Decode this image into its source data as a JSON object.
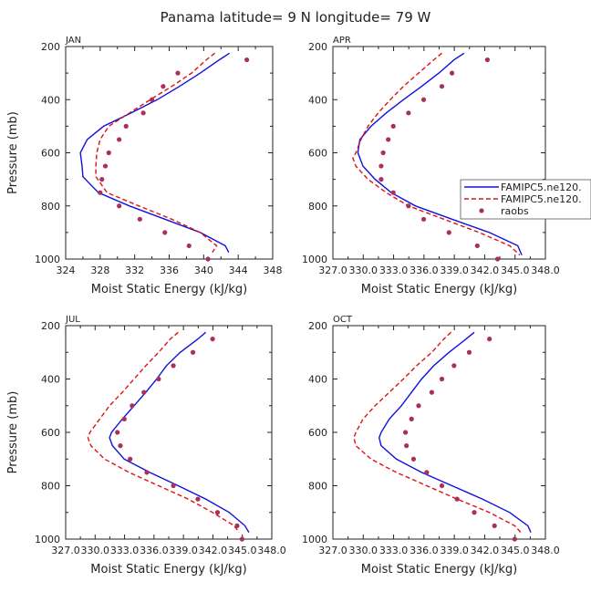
{
  "figure_title": "Panama   latitude= 9 N longitude= 79 W",
  "colors": {
    "model_a": "#1010e0",
    "model_b": "#e01010",
    "obs": "#a8305a",
    "axis": "#222222"
  },
  "legend": {
    "entries": [
      {
        "label": "FAMIPC5.ne120.",
        "style": "solid"
      },
      {
        "label": "FAMIPC5.ne120.",
        "style": "dashed"
      },
      {
        "label": "raobs",
        "style": "marker"
      }
    ]
  },
  "chart_data": [
    {
      "type": "line",
      "panel": "JAN",
      "xlabel": "Moist Static Energy (kJ/kg)",
      "ylabel": "Pressure (mb)",
      "xlim": [
        324,
        348
      ],
      "ylim": [
        1000,
        200
      ],
      "xticks": [
        324,
        328,
        332,
        336,
        340,
        344,
        348
      ],
      "xtick_labels": [
        "324",
        "328",
        "332",
        "336",
        "340",
        "344",
        "348"
      ],
      "yticks": [
        200,
        400,
        600,
        800,
        1000
      ],
      "ytick_labels": [
        "200",
        "400",
        "600",
        "800",
        "1000"
      ],
      "series": [
        {
          "name": "FAMIPC5.ne120.",
          "style": "solid",
          "pressure": [
            225,
            250,
            300,
            350,
            400,
            450,
            500,
            550,
            600,
            650,
            690,
            750,
            800,
            850,
            900,
            950,
            975
          ],
          "values": [
            343.0,
            341.8,
            339.6,
            337.2,
            334.6,
            331.6,
            328.4,
            326.5,
            325.7,
            325.9,
            326.0,
            327.8,
            331.4,
            335.5,
            339.6,
            342.5,
            342.9
          ]
        },
        {
          "name": "FAMIPC5.ne120.",
          "style": "dashed",
          "pressure": [
            225,
            250,
            300,
            350,
            400,
            450,
            500,
            550,
            600,
            650,
            690,
            750,
            800,
            850,
            900,
            950,
            975
          ],
          "values": [
            341.3,
            340.3,
            338.6,
            336.3,
            333.8,
            331.4,
            329.0,
            328.0,
            327.6,
            327.5,
            327.5,
            328.8,
            332.5,
            336.3,
            339.6,
            341.5,
            341.0
          ]
        },
        {
          "name": "raobs",
          "style": "marker",
          "pressure": [
            250,
            300,
            350,
            400,
            450,
            500,
            550,
            600,
            650,
            700,
            750,
            800,
            850,
            900,
            950,
            1000
          ],
          "values": [
            345.0,
            337.0,
            335.3,
            334.0,
            333.0,
            331.0,
            330.2,
            329.0,
            328.6,
            328.2,
            328.0,
            330.2,
            332.6,
            335.5,
            338.3,
            340.5
          ]
        }
      ]
    },
    {
      "type": "line",
      "panel": "APR",
      "xlabel": "Moist Static Energy (kJ/kg)",
      "ylabel": "Pressure (mb)",
      "xlim": [
        327.03,
        348.03
      ],
      "ylim": [
        1000,
        200
      ],
      "xticks": [
        327.03,
        330.03,
        333.03,
        336.03,
        339.03,
        342.03,
        345.03,
        348.03
      ],
      "xtick_labels": [
        "327.0",
        "330.0",
        "333.0",
        "336.0",
        "339.0",
        "342.0",
        "345.0",
        "348.0"
      ],
      "yticks": [
        200,
        400,
        600,
        800,
        1000
      ],
      "ytick_labels": [
        "200",
        "400",
        "600",
        "800",
        "1000"
      ],
      "series": [
        {
          "name": "FAMIPC5.ne120.",
          "style": "solid",
          "pressure": [
            225,
            250,
            300,
            350,
            400,
            450,
            500,
            550,
            600,
            650,
            700,
            750,
            800,
            850,
            900,
            950,
            985
          ],
          "values": [
            340.0,
            339.0,
            337.5,
            335.8,
            334.0,
            332.3,
            330.8,
            329.7,
            329.5,
            330.0,
            331.2,
            332.8,
            335.2,
            338.8,
            342.5,
            345.3,
            345.7
          ]
        },
        {
          "name": "FAMIPC5.ne120.",
          "style": "dashed",
          "pressure": [
            225,
            250,
            300,
            350,
            400,
            450,
            500,
            550,
            600,
            620,
            650,
            700,
            750,
            800,
            850,
            900,
            950,
            985
          ],
          "values": [
            337.8,
            337.0,
            335.5,
            334.0,
            332.7,
            331.5,
            330.5,
            329.8,
            329.3,
            329.0,
            329.3,
            330.5,
            332.3,
            334.5,
            338.0,
            341.5,
            344.5,
            345.5
          ]
        },
        {
          "name": "raobs",
          "style": "marker",
          "pressure": [
            250,
            300,
            350,
            400,
            450,
            500,
            550,
            600,
            650,
            700,
            750,
            800,
            850,
            900,
            950,
            1000
          ],
          "values": [
            342.3,
            338.8,
            337.8,
            336.0,
            334.5,
            333.0,
            332.5,
            332.0,
            331.8,
            331.8,
            333.0,
            334.5,
            336.0,
            338.5,
            341.3,
            343.3
          ]
        }
      ]
    },
    {
      "type": "line",
      "panel": "JUL",
      "xlabel": "Moist Static Energy (kJ/kg)",
      "ylabel": "Pressure (mb)",
      "xlim": [
        327.03,
        348.03
      ],
      "ylim": [
        1000,
        200
      ],
      "xticks": [
        327.03,
        330.03,
        333.03,
        336.03,
        339.03,
        342.03,
        345.03,
        348.03
      ],
      "xtick_labels": [
        "327.0",
        "330.0",
        "333.0",
        "336.0",
        "339.0",
        "342.0",
        "345.0",
        "348.0"
      ],
      "yticks": [
        200,
        400,
        600,
        800,
        1000
      ],
      "ytick_labels": [
        "200",
        "400",
        "600",
        "800",
        "1000"
      ],
      "series": [
        {
          "name": "FAMIPC5.ne120.",
          "style": "solid",
          "pressure": [
            225,
            250,
            300,
            350,
            400,
            450,
            500,
            550,
            600,
            620,
            650,
            700,
            750,
            800,
            850,
            900,
            950,
            975
          ],
          "values": [
            341.3,
            340.5,
            338.7,
            337.3,
            336.3,
            335.2,
            334.0,
            332.8,
            331.7,
            331.5,
            331.8,
            333.0,
            335.6,
            338.5,
            341.3,
            343.7,
            345.3,
            345.7
          ]
        },
        {
          "name": "FAMIPC5.ne120.",
          "style": "dashed",
          "pressure": [
            225,
            250,
            300,
            350,
            400,
            450,
            500,
            550,
            600,
            620,
            650,
            700,
            750,
            800,
            850,
            900,
            950,
            975
          ],
          "values": [
            338.5,
            337.7,
            336.5,
            335.2,
            334.0,
            332.8,
            331.5,
            330.5,
            329.5,
            329.3,
            329.6,
            331.0,
            333.5,
            336.5,
            339.5,
            342.0,
            344.2,
            344.7
          ]
        },
        {
          "name": "raobs",
          "style": "marker",
          "pressure": [
            250,
            300,
            350,
            400,
            450,
            500,
            550,
            600,
            650,
            700,
            750,
            800,
            850,
            900,
            950,
            1000
          ],
          "values": [
            342.0,
            340.0,
            338.0,
            336.5,
            335.0,
            333.8,
            333.0,
            332.3,
            332.6,
            333.6,
            335.3,
            338.0,
            340.5,
            342.5,
            344.5,
            345.0
          ]
        }
      ]
    },
    {
      "type": "line",
      "panel": "OCT",
      "xlabel": "Moist Static Energy (kJ/kg)",
      "ylabel": "Pressure (mb)",
      "xlim": [
        327.03,
        348.03
      ],
      "ylim": [
        1000,
        200
      ],
      "xticks": [
        327.03,
        330.03,
        333.03,
        336.03,
        339.03,
        342.03,
        345.03,
        348.03
      ],
      "xtick_labels": [
        "327.0",
        "330.0",
        "333.0",
        "336.0",
        "339.0",
        "342.0",
        "345.0",
        "348.0"
      ],
      "yticks": [
        200,
        400,
        600,
        800,
        1000
      ],
      "ytick_labels": [
        "200",
        "400",
        "600",
        "800",
        "1000"
      ],
      "series": [
        {
          "name": "FAMIPC5.ne120.",
          "style": "solid",
          "pressure": [
            225,
            250,
            300,
            350,
            400,
            450,
            500,
            550,
            600,
            620,
            650,
            700,
            750,
            800,
            850,
            900,
            950,
            975
          ],
          "values": [
            341.0,
            340.2,
            338.5,
            337.0,
            335.8,
            334.8,
            333.8,
            332.6,
            331.8,
            331.6,
            331.8,
            333.3,
            335.8,
            338.8,
            341.8,
            344.5,
            346.3,
            346.6
          ]
        },
        {
          "name": "FAMIPC5.ne120.",
          "style": "dashed",
          "pressure": [
            225,
            250,
            300,
            350,
            400,
            450,
            500,
            550,
            600,
            620,
            650,
            700,
            750,
            800,
            850,
            900,
            950,
            975
          ],
          "values": [
            338.7,
            338.0,
            336.8,
            335.3,
            334.0,
            332.6,
            331.2,
            330.0,
            329.3,
            329.1,
            329.3,
            330.8,
            333.3,
            336.3,
            339.3,
            342.5,
            345.0,
            345.6
          ]
        },
        {
          "name": "raobs",
          "style": "marker",
          "pressure": [
            250,
            300,
            350,
            400,
            450,
            500,
            550,
            600,
            650,
            700,
            750,
            800,
            850,
            900,
            950,
            1000
          ],
          "values": [
            342.5,
            340.5,
            339.0,
            337.8,
            336.8,
            335.5,
            334.8,
            334.2,
            334.3,
            335.0,
            336.3,
            337.8,
            339.3,
            341.0,
            343.0,
            345.0
          ]
        }
      ]
    }
  ]
}
